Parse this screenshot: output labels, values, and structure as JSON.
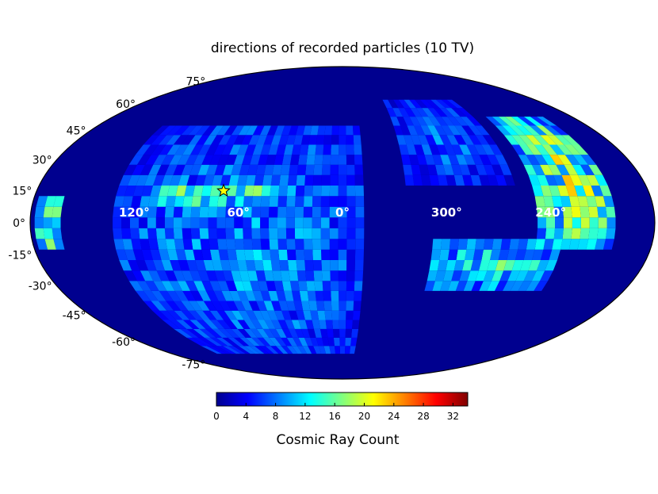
{
  "chart_data": {
    "type": "heatmap",
    "projection": "mollweide",
    "title": "directions of recorded particles (10 TV)",
    "colorbar_label": "Cosmic Ray Count",
    "colorbar_range": [
      0,
      34
    ],
    "colorbar_ticks": [
      "0",
      "4",
      "8",
      "12",
      "16",
      "20",
      "24",
      "28",
      "32"
    ],
    "colormap": "jet",
    "background_color": "#00008f",
    "latitude_labels": [
      "75°",
      "60°",
      "45°",
      "30°",
      "15°",
      "0°",
      "-15°",
      "-30°",
      "-45°",
      "-60°",
      "-75°"
    ],
    "longitude_labels": [
      "120°",
      "60°",
      "0°",
      "300°",
      "240°"
    ],
    "marker": {
      "label": "star",
      "lon": 70,
      "lat": 15,
      "color": "#ffff00"
    },
    "regions": [
      {
        "name": "broad-patch",
        "lon_center": 60,
        "lat_center": -10,
        "lon_width": 140,
        "lat_height": 110,
        "mean_count": 7
      },
      {
        "name": "arc-band",
        "lon_center": 75,
        "lat_center": 14,
        "lon_width": 70,
        "lat_height": 8,
        "mean_count": 13
      },
      {
        "name": "wrap-loop-upper",
        "lon_center": 290,
        "lat_center": 40,
        "lon_width": 60,
        "lat_height": 40,
        "mean_count": 6
      },
      {
        "name": "wrap-loop-outer",
        "lon_center": 225,
        "lat_center": 20,
        "lon_width": 40,
        "lat_height": 60,
        "mean_count": 14
      },
      {
        "name": "wrap-loop-lower",
        "lon_center": 270,
        "lat_center": -20,
        "lon_width": 70,
        "lat_height": 20,
        "mean_count": 10
      },
      {
        "name": "left-edge",
        "lon_center": 170,
        "lat_center": 0,
        "lon_width": 12,
        "lat_height": 20,
        "mean_count": 14
      }
    ]
  }
}
